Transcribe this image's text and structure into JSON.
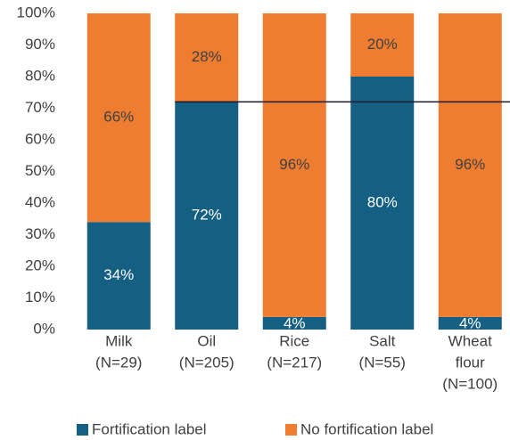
{
  "chart_data": {
    "type": "stacked-bar",
    "categories": [
      [
        "Milk",
        "(N=29)"
      ],
      [
        "Oil",
        "(N=205)"
      ],
      [
        "Rice",
        "(N=217)"
      ],
      [
        "Salt",
        "(N=55)"
      ],
      [
        "Wheat",
        "flour",
        "(N=100)"
      ]
    ],
    "series": [
      {
        "name": "Fortification label",
        "color": "#155f83",
        "values": [
          34,
          72,
          4,
          80,
          4
        ],
        "value_labels": [
          "34%",
          "72%",
          "4%",
          "80%",
          "4%"
        ]
      },
      {
        "name": "No fortification label",
        "color": "#ef7d31",
        "values": [
          66,
          28,
          96,
          20,
          96
        ],
        "value_labels": [
          "66%",
          "28%",
          "96%",
          "20%",
          "96%"
        ]
      }
    ],
    "ylim": [
      0,
      100
    ],
    "yticks": [
      {
        "value": 0,
        "label": "0%"
      },
      {
        "value": 10,
        "label": "10%"
      },
      {
        "value": 20,
        "label": "20%"
      },
      {
        "value": 30,
        "label": "30%"
      },
      {
        "value": 40,
        "label": "40%"
      },
      {
        "value": 50,
        "label": "50%"
      },
      {
        "value": 60,
        "label": "60%"
      },
      {
        "value": 70,
        "label": "70%"
      },
      {
        "value": 80,
        "label": "80%"
      },
      {
        "value": 90,
        "label": "90%"
      },
      {
        "value": 100,
        "label": "100%"
      }
    ],
    "reference_line": 72,
    "legend": "bottom"
  }
}
